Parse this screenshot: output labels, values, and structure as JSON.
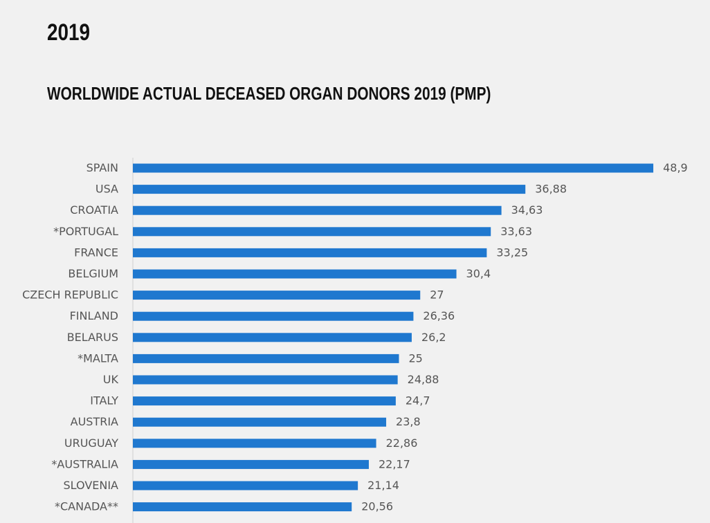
{
  "page": {
    "heading": "2019"
  },
  "chart_data": {
    "type": "bar",
    "orientation": "horizontal",
    "title": "WORLDWIDE ACTUAL DECEASED ORGAN DONORS 2019 (PMP)",
    "xlabel": "",
    "ylabel": "",
    "xlim": [
      0,
      50
    ],
    "grid": false,
    "legend": "none",
    "bar_color": "#1f78cf",
    "categories": [
      "SPAIN",
      "USA",
      "CROATIA",
      "*PORTUGAL",
      "FRANCE",
      "BELGIUM",
      "CZECH REPUBLIC",
      "FINLAND",
      "BELARUS",
      "*MALTA",
      "UK",
      "ITALY",
      "AUSTRIA",
      "URUGUAY",
      "*AUSTRALIA",
      "SLOVENIA",
      "*CANADA**"
    ],
    "values": [
      48.9,
      36.88,
      34.63,
      33.63,
      33.25,
      30.4,
      27,
      26.36,
      26.2,
      25,
      24.88,
      24.7,
      23.8,
      22.86,
      22.17,
      21.14,
      20.56
    ],
    "value_labels": [
      "48,9",
      "36,88",
      "34,63",
      "33,63",
      "33,25",
      "30,4",
      "27",
      "26,36",
      "26,2",
      "25",
      "24,88",
      "24,7",
      "23,8",
      "22,86",
      "22,17",
      "21,14",
      "20,56"
    ]
  }
}
